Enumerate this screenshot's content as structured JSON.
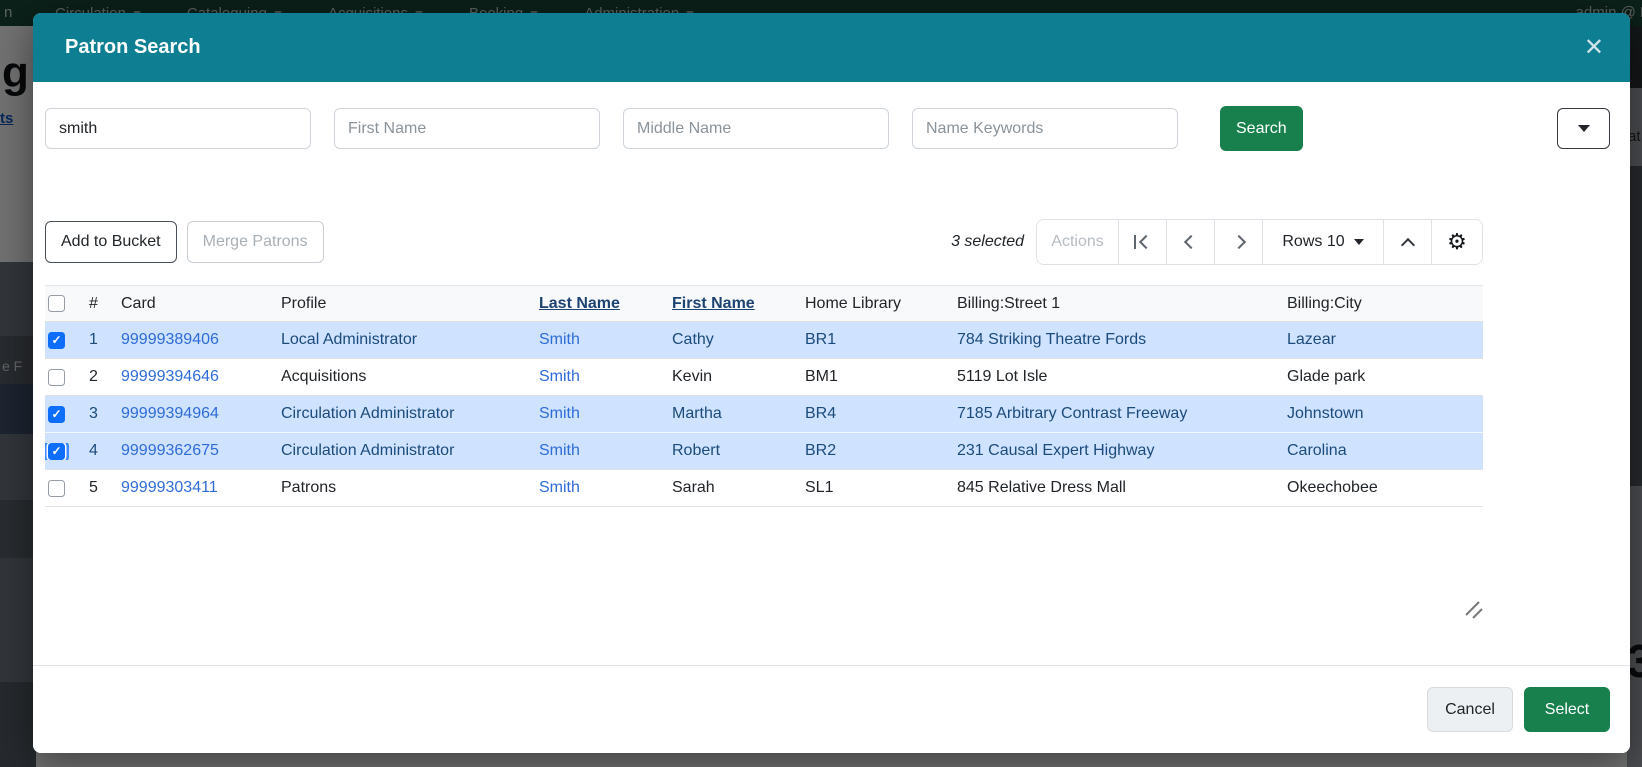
{
  "colors": {
    "header_teal": "#0e7e92",
    "primary_green": "#18804d",
    "link_blue": "#2f6cd8",
    "selected_row_bg": "#cfe2ff",
    "selected_row_text": "#1b4b7c",
    "sorted_header_link": "#1d4373",
    "checkbox_checked": "#0d6efd"
  },
  "navbar": {
    "left_fragment": "n",
    "items": [
      "Circulation",
      "Cataloguing",
      "Acquisitions",
      "Booking",
      "Administration"
    ],
    "right_text": "admin @ B"
  },
  "background_fragments": {
    "heading_fragment": "g",
    "link_fragment": "ts",
    "text_fragment": "e F",
    "right_top_fragment": "at",
    "right_bottom_fragment": "3"
  },
  "modal": {
    "title": "Patron Search",
    "close_icon": "✕",
    "search": {
      "fields": [
        {
          "id": "last-name",
          "value": "smith",
          "placeholder": ""
        },
        {
          "id": "first-name",
          "value": "",
          "placeholder": "First Name"
        },
        {
          "id": "middle-name",
          "value": "",
          "placeholder": "Middle Name"
        },
        {
          "id": "name-keywords",
          "value": "",
          "placeholder": "Name Keywords"
        }
      ],
      "search_button": "Search"
    },
    "toolbar": {
      "add_to_bucket": "Add to Bucket",
      "merge_patrons": "Merge Patrons",
      "selected_count": "3 selected",
      "actions": "Actions",
      "rows_label": "Rows 10"
    },
    "grid": {
      "columns": [
        {
          "label": "#",
          "sorted": false
        },
        {
          "label": "Card",
          "sorted": false
        },
        {
          "label": "Profile",
          "sorted": false
        },
        {
          "label": "Last Name",
          "sorted": true
        },
        {
          "label": "First Name",
          "sorted": true
        },
        {
          "label": "Home Library",
          "sorted": false
        },
        {
          "label": "Billing:Street 1",
          "sorted": false
        },
        {
          "label": "Billing:City",
          "sorted": false
        }
      ],
      "rows": [
        {
          "num": "1",
          "card": "99999389406",
          "profile": "Local Administrator",
          "last_name": "Smith",
          "first_name": "Cathy",
          "home_library": "BR1",
          "street": "784 Striking Theatre Fords",
          "city": "Lazear",
          "checked": true,
          "selected": true,
          "focused": false
        },
        {
          "num": "2",
          "card": "99999394646",
          "profile": "Acquisitions",
          "last_name": "Smith",
          "first_name": "Kevin",
          "home_library": "BM1",
          "street": "5119 Lot Isle",
          "city": "Glade park",
          "checked": false,
          "selected": false,
          "focused": false
        },
        {
          "num": "3",
          "card": "99999394964",
          "profile": "Circulation Administrator",
          "last_name": "Smith",
          "first_name": "Martha",
          "home_library": "BR4",
          "street": "7185 Arbitrary Contrast Freeway",
          "city": "Johnstown",
          "checked": true,
          "selected": true,
          "focused": false
        },
        {
          "num": "4",
          "card": "99999362675",
          "profile": "Circulation Administrator",
          "last_name": "Smith",
          "first_name": "Robert",
          "home_library": "BR2",
          "street": "231 Causal Expert Highway",
          "city": "Carolina",
          "checked": true,
          "selected": true,
          "focused": true
        },
        {
          "num": "5",
          "card": "99999303411",
          "profile": "Patrons",
          "last_name": "Smith",
          "first_name": "Sarah",
          "home_library": "SL1",
          "street": "845 Relative Dress Mall",
          "city": "Okeechobee",
          "checked": false,
          "selected": false,
          "focused": false
        }
      ]
    },
    "footer": {
      "cancel": "Cancel",
      "select": "Select"
    }
  }
}
